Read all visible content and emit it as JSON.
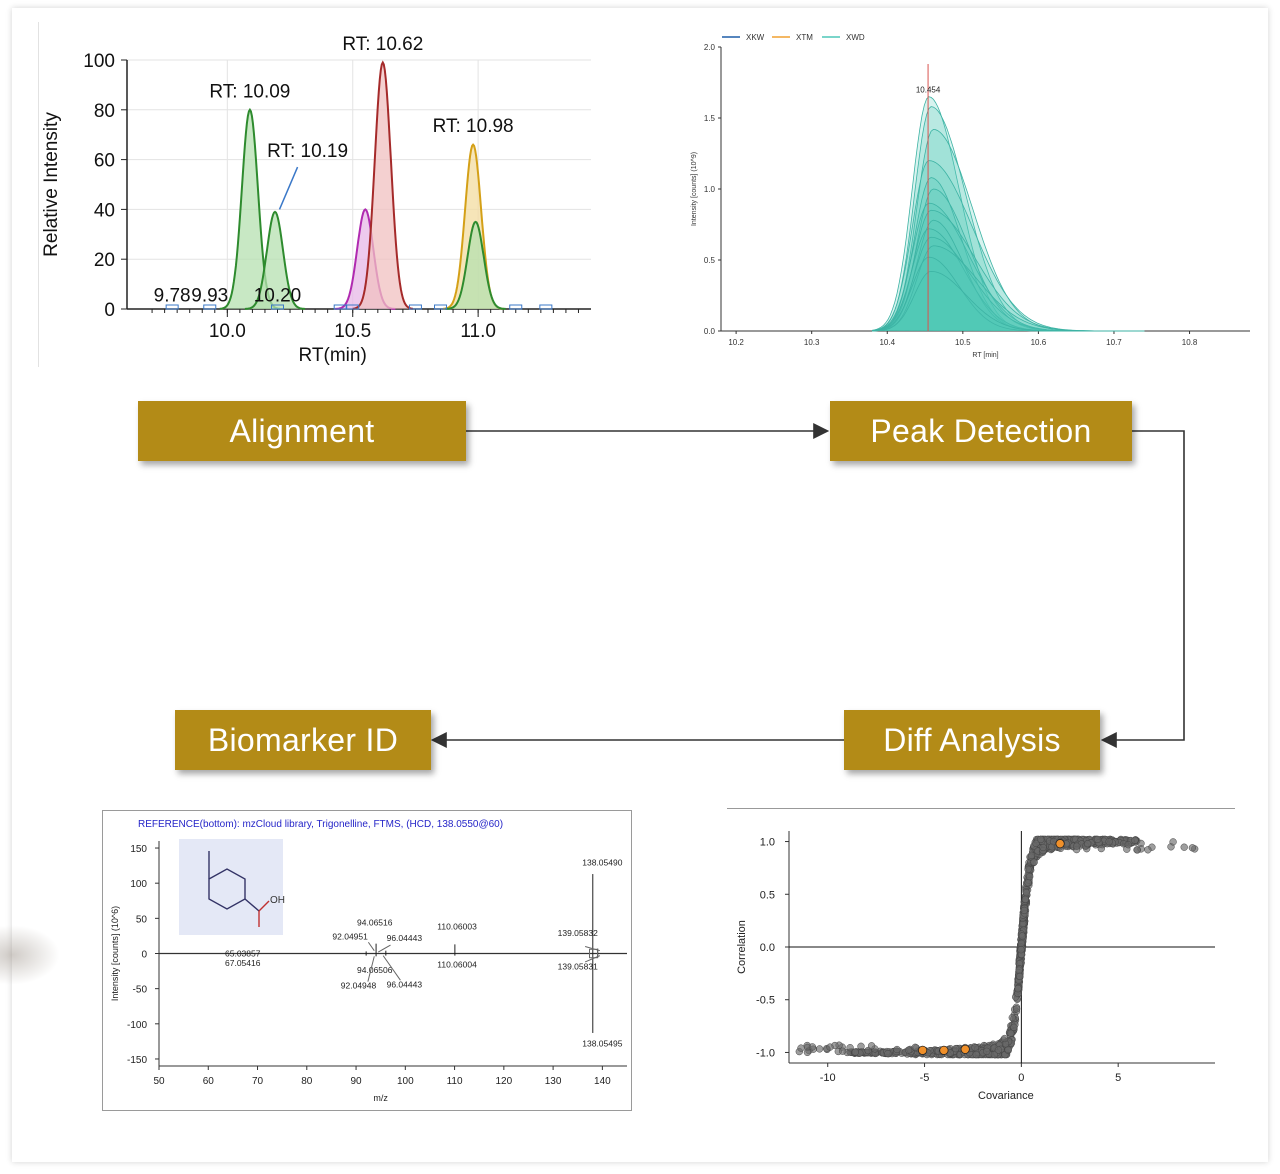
{
  "steps": {
    "alignment": "Alignment",
    "peak_detection": "Peak Detection",
    "diff_analysis": "Diff Analysis",
    "biomarker_id": "Biomarker ID"
  },
  "colors": {
    "step_fill": "#b38b17",
    "step_text": "#ffffff",
    "teal": "#4fc7b8",
    "marker_line": "#d9534f",
    "scatter_point": "#555555",
    "scatter_highlight": "#f0902a"
  },
  "chart_data": [
    {
      "id": "alignment_chart",
      "type": "line",
      "xlabel": "RT(min)",
      "ylabel": "Relative Intensity",
      "xlim": [
        9.6,
        11.45
      ],
      "ylim": [
        0,
        100
      ],
      "x_ticks": [
        "10.0",
        "10.5",
        "11.0"
      ],
      "y_ticks": [
        "0",
        "20",
        "40",
        "60",
        "80",
        "100"
      ],
      "grid": true,
      "series": [
        {
          "color": "#2e8b2e",
          "fill": "#b5e0b0",
          "peak_rt": 10.09,
          "height": 80
        },
        {
          "color": "#2e8b2e",
          "fill": "#b5e0b0",
          "peak_rt": 10.19,
          "height": 39
        },
        {
          "color": "#b02ab0",
          "fill": "#e7b8e7",
          "peak_rt": 10.55,
          "height": 40
        },
        {
          "color": "#a52a2a",
          "fill": "#f0c0c0",
          "peak_rt": 10.62,
          "height": 99
        },
        {
          "color": "#d4a017",
          "fill": "#f3dca0",
          "peak_rt": 10.98,
          "height": 66
        },
        {
          "color": "#2e8b2e",
          "fill": "#b5e0b0",
          "peak_rt": 10.99,
          "height": 35
        }
      ],
      "annotations": [
        {
          "text": "RT: 10.09",
          "x": 10.09,
          "y": 85
        },
        {
          "text": "RT: 10.19",
          "x": 10.32,
          "y": 61
        },
        {
          "text": "RT: 10.62",
          "x": 10.62,
          "y": 104
        },
        {
          "text": "RT: 10.98",
          "x": 10.98,
          "y": 71
        },
        {
          "text": "9.78",
          "x": 9.78,
          "y": 3
        },
        {
          "text": "9.93",
          "x": 9.93,
          "y": 3
        },
        {
          "text": "10.20",
          "x": 10.2,
          "y": 3
        }
      ]
    },
    {
      "id": "peak_detection_chart",
      "type": "area",
      "xlabel": "RT [min]",
      "ylabel": "Intensity [counts] (10^9)",
      "xlim": [
        10.18,
        10.88
      ],
      "ylim": [
        0,
        2.0
      ],
      "x_ticks": [
        "10.2",
        "10.3",
        "10.4",
        "10.5",
        "10.6",
        "10.7",
        "10.8"
      ],
      "y_ticks": [
        "0.0",
        "0.5",
        "1.0",
        "1.5",
        "2.0"
      ],
      "legend": [
        {
          "name": "XKW",
          "color": "#1f5fa8"
        },
        {
          "name": "XTM",
          "color": "#f0a030"
        },
        {
          "name": "XWD",
          "color": "#4fc7b8"
        }
      ],
      "marker": {
        "x": 10.454,
        "label": "10.454"
      },
      "peak_heights": [
        1.65,
        1.58,
        1.42,
        1.2,
        1.08,
        1.0,
        0.9,
        0.85,
        0.78,
        0.72,
        0.66,
        0.6,
        0.52,
        0.42
      ]
    },
    {
      "id": "spectrum_chart",
      "type": "bar",
      "title": "REFERENCE(bottom): mzCloud library, Trigonelline, FTMS, (HCD, 138.0550@60)",
      "xlabel": "m/z",
      "ylabel": "Intensity [counts] (10^6)",
      "xlim": [
        50,
        145
      ],
      "ylim": [
        -160,
        160
      ],
      "x_ticks": [
        "50",
        "60",
        "70",
        "80",
        "90",
        "100",
        "110",
        "120",
        "130",
        "140"
      ],
      "y_ticks": [
        "150",
        "100",
        "50",
        "0",
        "-50",
        "-100",
        "-150"
      ],
      "peaks_top": [
        {
          "mz": 138.0549,
          "value": 113,
          "label": "138.05490"
        },
        {
          "mz": 139.0583,
          "value": 7,
          "label": "139.05832"
        },
        {
          "mz": 110.06,
          "value": 13,
          "label": "110.06003"
        },
        {
          "mz": 94.0652,
          "value": 14,
          "label": "94.06516"
        },
        {
          "mz": 96.0444,
          "value": 4,
          "label": "96.04443"
        },
        {
          "mz": 92.0495,
          "value": 3,
          "label": "92.04951"
        },
        {
          "mz": 65.0386,
          "value": 1,
          "label": "65.03857"
        }
      ],
      "peaks_bottom": [
        {
          "mz": 138.05495,
          "value": -113,
          "label": "138.05495"
        },
        {
          "mz": 139.0583,
          "value": -6,
          "label": "139.05831"
        },
        {
          "mz": 110.06,
          "value": -3,
          "label": "110.06004"
        },
        {
          "mz": 94.0651,
          "value": -4,
          "label": "94.06506"
        },
        {
          "mz": 96.0444,
          "value": -3,
          "label": "96.04443"
        },
        {
          "mz": 92.0495,
          "value": -3,
          "label": "92.04948"
        },
        {
          "mz": 67.0542,
          "value": -1,
          "label": "67.05416"
        }
      ],
      "structure_label": "OH"
    },
    {
      "id": "splot_chart",
      "type": "scatter",
      "xlabel": "Covariance",
      "ylabel": "Correlation",
      "xlim": [
        -12,
        10
      ],
      "ylim": [
        -1.1,
        1.1
      ],
      "x_ticks": [
        "-10",
        "-5",
        "0",
        "5"
      ],
      "y_ticks": [
        "1.0",
        "0.5",
        "0.0",
        "-0.5",
        "-1.0"
      ],
      "highlighted": [
        {
          "x": 2.0,
          "y": 0.98
        },
        {
          "x": -5.1,
          "y": -0.98
        },
        {
          "x": -4.0,
          "y": -0.98
        },
        {
          "x": -2.9,
          "y": -0.97
        }
      ]
    }
  ]
}
